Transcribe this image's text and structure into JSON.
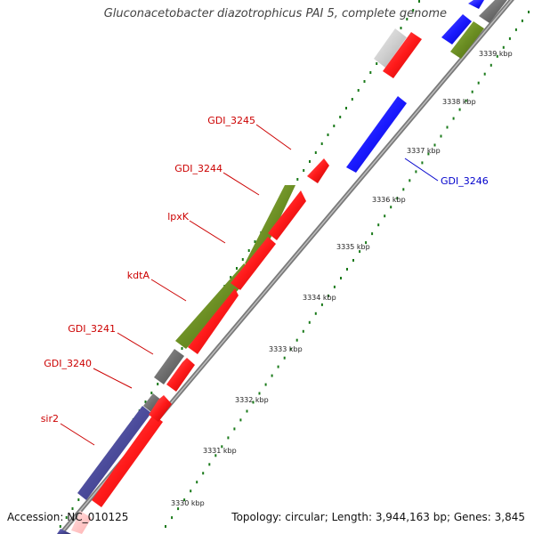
{
  "title": "Gluconacetobacter diazotrophicus PAI 5, complete genome",
  "accession": {
    "label": "Accession:",
    "value": "NC_010125"
  },
  "topology": {
    "topology_label": "Topology:",
    "topology_value": "circular;",
    "length_label": "Length:",
    "length_value": "3,944,163 bp;",
    "genes_label": "Genes:",
    "genes_value": "3,845"
  },
  "colors": {
    "backbone": "#8c8c8c",
    "tick_dots": "#1a7a1a",
    "red_feature": "#ff1a1a",
    "blue_feature": "#1a1aff",
    "olive_feature": "#6b8e23",
    "gray_feature": "#6e6e6e",
    "lightgray_feature": "#d0d0d0",
    "purple_feature": "#4b4b9b",
    "label_red": "#cc0000",
    "label_blue": "#0000cc"
  },
  "scale_ticks": [
    "3330 kbp",
    "3331 kbp",
    "3332 kbp",
    "3333 kbp",
    "3334 kbp",
    "3335 kbp",
    "3336 kbp",
    "3337 kbp",
    "3338 kbp",
    "3339 kbp"
  ],
  "gene_labels": [
    {
      "name": "GDI_3245",
      "color": "red"
    },
    {
      "name": "GDI_3244",
      "color": "red"
    },
    {
      "name": "lpxK",
      "color": "red"
    },
    {
      "name": "kdtA",
      "color": "red"
    },
    {
      "name": "GDI_3241",
      "color": "red"
    },
    {
      "name": "GDI_3240",
      "color": "red"
    },
    {
      "name": "sir2",
      "color": "red"
    },
    {
      "name": "GDI_3246",
      "color": "blue"
    }
  ]
}
